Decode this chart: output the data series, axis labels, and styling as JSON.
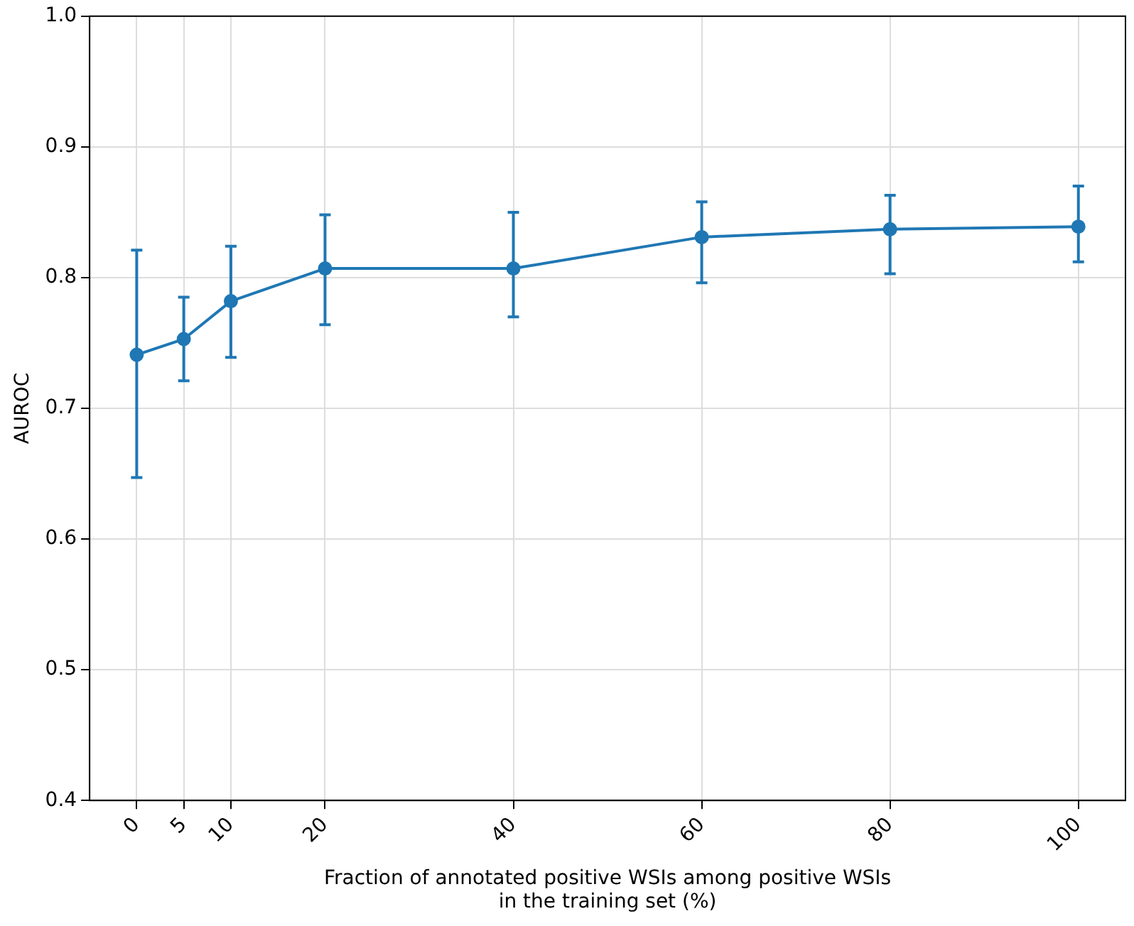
{
  "chart_data": {
    "type": "line",
    "xlabel": "Fraction of annotated positive WSIs among positive WSIs\nin the training set (%)",
    "ylabel": "AUROC",
    "x": [
      0,
      5,
      10,
      20,
      40,
      60,
      80,
      100
    ],
    "series": [
      {
        "color": "#1f77b4",
        "values": [
          0.741,
          0.753,
          0.782,
          0.807,
          0.807,
          0.831,
          0.837,
          0.839
        ],
        "errors": [
          [
            0.647,
            0.821
          ],
          [
            0.721,
            0.785
          ],
          [
            0.739,
            0.824
          ],
          [
            0.764,
            0.848
          ],
          [
            0.77,
            0.85
          ],
          [
            0.796,
            0.858
          ],
          [
            0.803,
            0.863
          ],
          [
            0.812,
            0.87
          ]
        ]
      }
    ],
    "xlim": [
      -5,
      105
    ],
    "xticks": [
      0,
      5,
      10,
      20,
      40,
      60,
      80,
      100
    ],
    "ylim": [
      0.4,
      1.0
    ],
    "yticks": [
      0.4,
      0.5,
      0.6,
      0.7,
      0.8,
      0.9,
      {
        "value": 1.0,
        "label": "1.0"
      }
    ],
    "grid": true,
    "marker": "circle",
    "line_style": "solid",
    "legend": false
  }
}
